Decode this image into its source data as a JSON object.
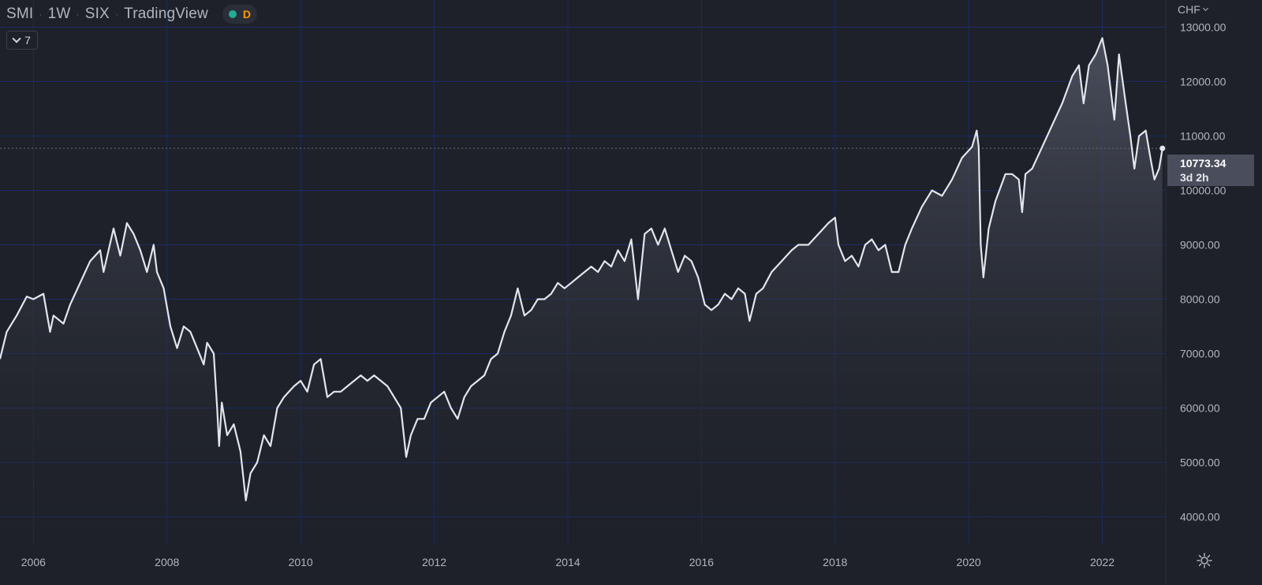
{
  "header": {
    "symbol": "SMI",
    "interval": "1W",
    "exchange": "SIX",
    "source": "TradingView",
    "status_letter": "D"
  },
  "indicator_toggle": {
    "count": "7"
  },
  "currency": "CHF",
  "last_price": {
    "value": "10773.34",
    "countdown": "3d 2h"
  },
  "colors": {
    "background": "#1e2129",
    "grid": "#1c2a66",
    "line": "#e3e5ec",
    "status_green": "#22ab94",
    "status_orange": "#ff9800"
  },
  "chart_data": {
    "type": "area",
    "ylim": [
      3500,
      13500
    ],
    "xlim": [
      "2005.5",
      "2022.95"
    ],
    "y_ticks": [
      "13000.00",
      "12000.00",
      "11000.00",
      "10000.00",
      "9000.00",
      "8000.00",
      "7000.00",
      "6000.00",
      "5000.00",
      "4000.00"
    ],
    "x_ticks": [
      "2006",
      "2008",
      "2010",
      "2012",
      "2014",
      "2016",
      "2018",
      "2020",
      "2022"
    ],
    "grid": true,
    "series": [
      {
        "points": [
          [
            2005.5,
            6900
          ],
          [
            2005.6,
            7400
          ],
          [
            2005.75,
            7700
          ],
          [
            2005.9,
            8050
          ],
          [
            2006.0,
            8000
          ],
          [
            2006.15,
            8100
          ],
          [
            2006.25,
            7400
          ],
          [
            2006.3,
            7700
          ],
          [
            2006.45,
            7550
          ],
          [
            2006.55,
            7900
          ],
          [
            2006.7,
            8300
          ],
          [
            2006.85,
            8700
          ],
          [
            2007.0,
            8900
          ],
          [
            2007.05,
            8500
          ],
          [
            2007.2,
            9300
          ],
          [
            2007.3,
            8800
          ],
          [
            2007.4,
            9400
          ],
          [
            2007.5,
            9200
          ],
          [
            2007.6,
            8900
          ],
          [
            2007.7,
            8500
          ],
          [
            2007.8,
            9000
          ],
          [
            2007.85,
            8500
          ],
          [
            2007.95,
            8200
          ],
          [
            2008.05,
            7500
          ],
          [
            2008.15,
            7100
          ],
          [
            2008.25,
            7500
          ],
          [
            2008.35,
            7400
          ],
          [
            2008.45,
            7100
          ],
          [
            2008.55,
            6800
          ],
          [
            2008.6,
            7200
          ],
          [
            2008.7,
            7000
          ],
          [
            2008.75,
            6000
          ],
          [
            2008.78,
            5300
          ],
          [
            2008.82,
            6100
          ],
          [
            2008.9,
            5500
          ],
          [
            2009.0,
            5700
          ],
          [
            2009.1,
            5200
          ],
          [
            2009.18,
            4300
          ],
          [
            2009.25,
            4800
          ],
          [
            2009.35,
            5000
          ],
          [
            2009.45,
            5500
          ],
          [
            2009.55,
            5300
          ],
          [
            2009.65,
            6000
          ],
          [
            2009.75,
            6200
          ],
          [
            2009.9,
            6400
          ],
          [
            2010.0,
            6500
          ],
          [
            2010.1,
            6300
          ],
          [
            2010.2,
            6800
          ],
          [
            2010.3,
            6900
          ],
          [
            2010.4,
            6200
          ],
          [
            2010.5,
            6300
          ],
          [
            2010.6,
            6300
          ],
          [
            2010.7,
            6400
          ],
          [
            2010.8,
            6500
          ],
          [
            2010.9,
            6600
          ],
          [
            2011.0,
            6500
          ],
          [
            2011.1,
            6600
          ],
          [
            2011.2,
            6500
          ],
          [
            2011.3,
            6400
          ],
          [
            2011.4,
            6200
          ],
          [
            2011.5,
            6000
          ],
          [
            2011.58,
            5100
          ],
          [
            2011.65,
            5500
          ],
          [
            2011.75,
            5800
          ],
          [
            2011.85,
            5800
          ],
          [
            2011.95,
            6100
          ],
          [
            2012.05,
            6200
          ],
          [
            2012.15,
            6300
          ],
          [
            2012.25,
            6000
          ],
          [
            2012.35,
            5800
          ],
          [
            2012.45,
            6200
          ],
          [
            2012.55,
            6400
          ],
          [
            2012.65,
            6500
          ],
          [
            2012.75,
            6600
          ],
          [
            2012.85,
            6900
          ],
          [
            2012.95,
            7000
          ],
          [
            2013.05,
            7400
          ],
          [
            2013.15,
            7700
          ],
          [
            2013.25,
            8200
          ],
          [
            2013.35,
            7700
          ],
          [
            2013.45,
            7800
          ],
          [
            2013.55,
            8000
          ],
          [
            2013.65,
            8000
          ],
          [
            2013.75,
            8100
          ],
          [
            2013.85,
            8300
          ],
          [
            2013.95,
            8200
          ],
          [
            2014.05,
            8300
          ],
          [
            2014.15,
            8400
          ],
          [
            2014.25,
            8500
          ],
          [
            2014.35,
            8600
          ],
          [
            2014.45,
            8500
          ],
          [
            2014.55,
            8700
          ],
          [
            2014.65,
            8600
          ],
          [
            2014.75,
            8900
          ],
          [
            2014.85,
            8700
          ],
          [
            2014.95,
            9100
          ],
          [
            2015.05,
            8000
          ],
          [
            2015.15,
            9200
          ],
          [
            2015.25,
            9300
          ],
          [
            2015.35,
            9000
          ],
          [
            2015.45,
            9300
          ],
          [
            2015.55,
            8900
          ],
          [
            2015.65,
            8500
          ],
          [
            2015.75,
            8800
          ],
          [
            2015.85,
            8700
          ],
          [
            2015.95,
            8400
          ],
          [
            2016.05,
            7900
          ],
          [
            2016.15,
            7800
          ],
          [
            2016.25,
            7900
          ],
          [
            2016.35,
            8100
          ],
          [
            2016.45,
            8000
          ],
          [
            2016.55,
            8200
          ],
          [
            2016.65,
            8100
          ],
          [
            2016.72,
            7600
          ],
          [
            2016.82,
            8100
          ],
          [
            2016.92,
            8200
          ],
          [
            2017.05,
            8500
          ],
          [
            2017.2,
            8700
          ],
          [
            2017.35,
            8900
          ],
          [
            2017.45,
            9000
          ],
          [
            2017.6,
            9000
          ],
          [
            2017.75,
            9200
          ],
          [
            2017.9,
            9400
          ],
          [
            2018.0,
            9500
          ],
          [
            2018.05,
            9000
          ],
          [
            2018.15,
            8700
          ],
          [
            2018.25,
            8800
          ],
          [
            2018.35,
            8600
          ],
          [
            2018.45,
            9000
          ],
          [
            2018.55,
            9100
          ],
          [
            2018.65,
            8900
          ],
          [
            2018.75,
            9000
          ],
          [
            2018.85,
            8500
          ],
          [
            2018.95,
            8500
          ],
          [
            2019.05,
            9000
          ],
          [
            2019.15,
            9300
          ],
          [
            2019.3,
            9700
          ],
          [
            2019.45,
            10000
          ],
          [
            2019.6,
            9900
          ],
          [
            2019.75,
            10200
          ],
          [
            2019.9,
            10600
          ],
          [
            2020.05,
            10800
          ],
          [
            2020.12,
            11100
          ],
          [
            2020.15,
            10800
          ],
          [
            2020.18,
            9000
          ],
          [
            2020.22,
            8400
          ],
          [
            2020.3,
            9300
          ],
          [
            2020.4,
            9800
          ],
          [
            2020.55,
            10300
          ],
          [
            2020.65,
            10300
          ],
          [
            2020.75,
            10200
          ],
          [
            2020.8,
            9600
          ],
          [
            2020.85,
            10300
          ],
          [
            2020.95,
            10400
          ],
          [
            2021.1,
            10800
          ],
          [
            2021.25,
            11200
          ],
          [
            2021.4,
            11600
          ],
          [
            2021.55,
            12100
          ],
          [
            2021.65,
            12300
          ],
          [
            2021.72,
            11600
          ],
          [
            2021.8,
            12300
          ],
          [
            2021.9,
            12500
          ],
          [
            2022.0,
            12800
          ],
          [
            2022.08,
            12300
          ],
          [
            2022.12,
            11900
          ],
          [
            2022.18,
            11300
          ],
          [
            2022.25,
            12500
          ],
          [
            2022.35,
            11600
          ],
          [
            2022.42,
            11000
          ],
          [
            2022.48,
            10400
          ],
          [
            2022.55,
            11000
          ],
          [
            2022.65,
            11100
          ],
          [
            2022.72,
            10600
          ],
          [
            2022.78,
            10200
          ],
          [
            2022.85,
            10400
          ],
          [
            2022.9,
            10773
          ]
        ]
      }
    ]
  }
}
